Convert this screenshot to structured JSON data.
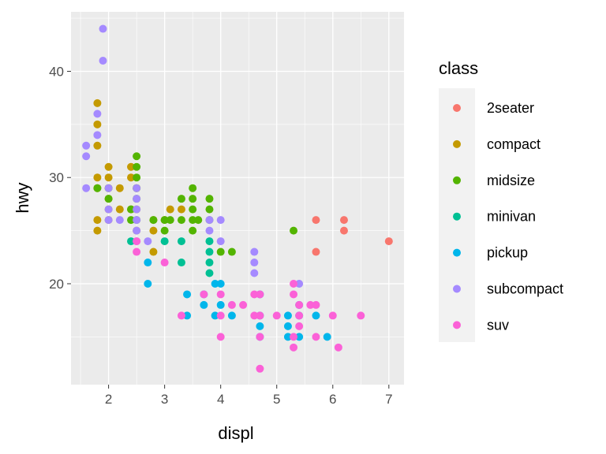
{
  "chart_data": {
    "type": "scatter",
    "xlabel": "displ",
    "ylabel": "hwy",
    "xlim": [
      1.33,
      7.27
    ],
    "ylim": [
      10.5,
      45.6
    ],
    "xticks": [
      2,
      3,
      4,
      5,
      6,
      7
    ],
    "yticks": [
      20,
      30,
      40
    ],
    "grid": true,
    "legend": {
      "title": "class",
      "placement": "right"
    },
    "series": [
      {
        "name": "2seater",
        "color": "#F8766D",
        "points": [
          [
            5.7,
            26
          ],
          [
            5.7,
            23
          ],
          [
            6.2,
            26
          ],
          [
            6.2,
            25
          ],
          [
            7.0,
            24
          ]
        ]
      },
      {
        "name": "compact",
        "color": "#C49A00",
        "points": [
          [
            1.8,
            25
          ],
          [
            1.8,
            26
          ],
          [
            1.8,
            29
          ],
          [
            1.8,
            30
          ],
          [
            1.8,
            33
          ],
          [
            1.8,
            35
          ],
          [
            1.8,
            37
          ],
          [
            2.0,
            26
          ],
          [
            2.0,
            27
          ],
          [
            2.0,
            28
          ],
          [
            2.0,
            29
          ],
          [
            2.0,
            30
          ],
          [
            2.0,
            31
          ],
          [
            2.2,
            27
          ],
          [
            2.2,
            29
          ],
          [
            2.4,
            27
          ],
          [
            2.4,
            30
          ],
          [
            2.4,
            31
          ],
          [
            2.5,
            25
          ],
          [
            2.5,
            27
          ],
          [
            2.5,
            29
          ],
          [
            2.8,
            23
          ],
          [
            2.8,
            25
          ],
          [
            2.8,
            26
          ],
          [
            3.0,
            26
          ],
          [
            3.1,
            27
          ],
          [
            3.3,
            27
          ]
        ]
      },
      {
        "name": "midsize",
        "color": "#53B400",
        "points": [
          [
            1.8,
            29
          ],
          [
            2.0,
            28
          ],
          [
            2.0,
            29
          ],
          [
            2.4,
            26
          ],
          [
            2.4,
            27
          ],
          [
            2.5,
            26
          ],
          [
            2.5,
            28
          ],
          [
            2.5,
            29
          ],
          [
            2.5,
            30
          ],
          [
            2.5,
            31
          ],
          [
            2.5,
            32
          ],
          [
            2.8,
            26
          ],
          [
            3.0,
            25
          ],
          [
            3.0,
            26
          ],
          [
            3.1,
            26
          ],
          [
            3.3,
            26
          ],
          [
            3.3,
            28
          ],
          [
            3.5,
            25
          ],
          [
            3.5,
            26
          ],
          [
            3.5,
            27
          ],
          [
            3.5,
            28
          ],
          [
            3.5,
            29
          ],
          [
            3.6,
            26
          ],
          [
            3.8,
            26
          ],
          [
            3.8,
            27
          ],
          [
            3.8,
            28
          ],
          [
            4.0,
            23
          ],
          [
            4.2,
            23
          ],
          [
            5.3,
            25
          ]
        ]
      },
      {
        "name": "minivan",
        "color": "#00C094",
        "points": [
          [
            2.4,
            24
          ],
          [
            3.0,
            24
          ],
          [
            3.3,
            22
          ],
          [
            3.3,
            24
          ],
          [
            3.8,
            21
          ],
          [
            3.8,
            22
          ],
          [
            3.8,
            23
          ],
          [
            3.8,
            24
          ]
        ]
      },
      {
        "name": "pickup",
        "color": "#00B6EB",
        "points": [
          [
            2.7,
            20
          ],
          [
            2.7,
            22
          ],
          [
            3.4,
            17
          ],
          [
            3.4,
            19
          ],
          [
            3.7,
            18
          ],
          [
            3.7,
            19
          ],
          [
            3.9,
            17
          ],
          [
            3.9,
            20
          ],
          [
            4.0,
            18
          ],
          [
            4.0,
            20
          ],
          [
            4.2,
            17
          ],
          [
            4.7,
            15
          ],
          [
            4.7,
            16
          ],
          [
            4.7,
            17
          ],
          [
            4.7,
            19
          ],
          [
            5.2,
            15
          ],
          [
            5.2,
            16
          ],
          [
            5.2,
            17
          ],
          [
            5.4,
            15
          ],
          [
            5.4,
            17
          ],
          [
            5.4,
            18
          ],
          [
            5.7,
            17
          ],
          [
            5.9,
            15
          ]
        ]
      },
      {
        "name": "subcompact",
        "color": "#A58AFF",
        "points": [
          [
            1.6,
            29
          ],
          [
            1.6,
            32
          ],
          [
            1.6,
            33
          ],
          [
            1.8,
            34
          ],
          [
            1.8,
            36
          ],
          [
            1.9,
            41
          ],
          [
            1.9,
            44
          ],
          [
            2.0,
            26
          ],
          [
            2.0,
            27
          ],
          [
            2.0,
            29
          ],
          [
            2.2,
            26
          ],
          [
            2.5,
            24
          ],
          [
            2.5,
            25
          ],
          [
            2.5,
            26
          ],
          [
            2.5,
            27
          ],
          [
            2.5,
            28
          ],
          [
            2.5,
            29
          ],
          [
            2.7,
            24
          ],
          [
            3.8,
            25
          ],
          [
            3.8,
            26
          ],
          [
            4.0,
            24
          ],
          [
            4.0,
            26
          ],
          [
            4.6,
            21
          ],
          [
            4.6,
            22
          ],
          [
            4.6,
            23
          ],
          [
            5.4,
            20
          ]
        ]
      },
      {
        "name": "suv",
        "color": "#FB61D7",
        "points": [
          [
            2.5,
            23
          ],
          [
            2.5,
            24
          ],
          [
            3.0,
            22
          ],
          [
            3.3,
            17
          ],
          [
            3.7,
            19
          ],
          [
            4.0,
            15
          ],
          [
            4.0,
            17
          ],
          [
            4.0,
            19
          ],
          [
            4.2,
            18
          ],
          [
            4.4,
            18
          ],
          [
            4.6,
            17
          ],
          [
            4.6,
            19
          ],
          [
            4.7,
            12
          ],
          [
            4.7,
            15
          ],
          [
            4.7,
            17
          ],
          [
            4.7,
            19
          ],
          [
            5.0,
            17
          ],
          [
            5.3,
            14
          ],
          [
            5.3,
            15
          ],
          [
            5.3,
            19
          ],
          [
            5.3,
            20
          ],
          [
            5.4,
            16
          ],
          [
            5.4,
            17
          ],
          [
            5.4,
            18
          ],
          [
            5.6,
            18
          ],
          [
            5.7,
            15
          ],
          [
            5.7,
            18
          ],
          [
            6.0,
            17
          ],
          [
            6.1,
            14
          ],
          [
            6.5,
            17
          ]
        ]
      }
    ]
  }
}
